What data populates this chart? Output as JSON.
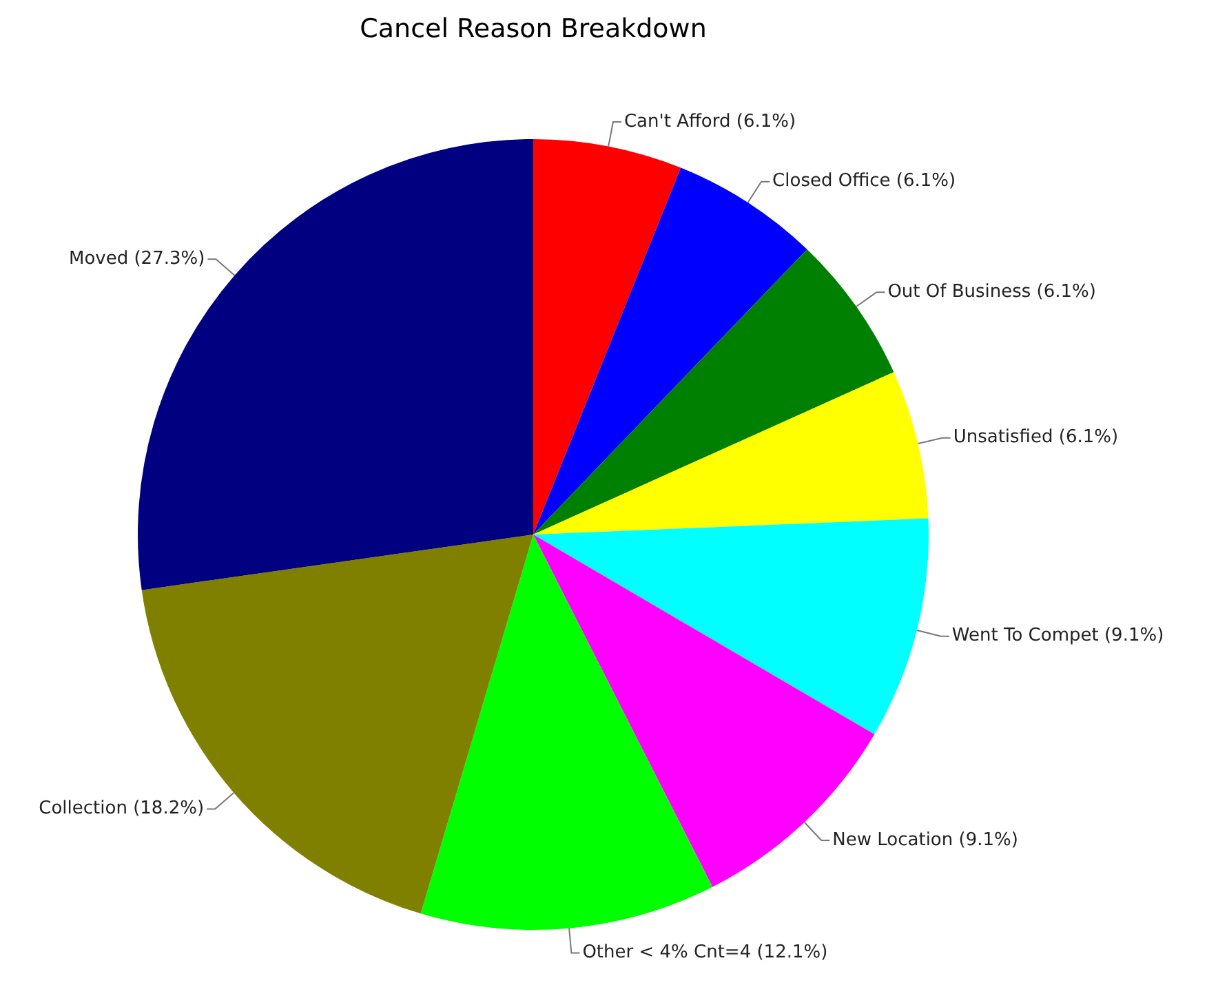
{
  "chart_data": {
    "type": "pie",
    "title": "Cancel Reason Breakdown",
    "categories": [
      "Can't Afford",
      "Closed Office",
      "Out Of Business",
      "Unsatisfied",
      "Went To Compet",
      "New Location",
      "Other < 4% Cnt=4",
      "Collection",
      "Moved"
    ],
    "values": [
      6.1,
      6.1,
      6.1,
      6.1,
      9.1,
      9.1,
      12.1,
      18.2,
      27.3
    ],
    "value_labels": [
      "(6.1%)",
      "(6.1%)",
      "(6.1%)",
      "(6.1%)",
      "(9.1%)",
      "(9.1%)",
      "(12.1%)",
      "(18.2%)",
      "(27.3%)"
    ],
    "colors": [
      "#ff0000",
      "#0000ff",
      "#008000",
      "#ffff00",
      "#00ffff",
      "#ff00ff",
      "#00ff00",
      "#808000",
      "#000080"
    ],
    "legend": false
  }
}
